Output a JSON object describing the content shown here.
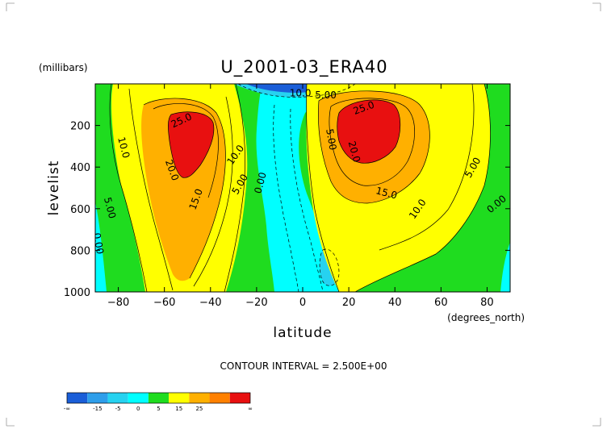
{
  "chart_data": {
    "type": "contour",
    "title": "U_2001-03_ERA40",
    "xlabel": "latitude",
    "xunits": "(degrees_north)",
    "ylabel": "levelist",
    "yunits": "(millibars)",
    "xlim": [
      -90,
      90
    ],
    "ylim": [
      1000,
      0
    ],
    "xticks": [
      -80,
      -60,
      -40,
      -20,
      0,
      20,
      40,
      60,
      80
    ],
    "xtick_labels": [
      "−80",
      "−60",
      "−40",
      "−20",
      "0",
      "20",
      "40",
      "60",
      "80"
    ],
    "yticks": [
      200,
      400,
      600,
      800,
      1000
    ],
    "ytick_labels": [
      "200",
      "400",
      "600",
      "800",
      "1000"
    ],
    "contour_interval_text": "CONTOUR INTERVAL = 2.500E+00",
    "contour_labels": [
      {
        "text": "25.0",
        "lat": -52,
        "lev": 190,
        "angle": -25
      },
      {
        "text": "20.0",
        "lat": -58,
        "lev": 420,
        "angle": 70
      },
      {
        "text": "15.0",
        "lat": -45,
        "lev": 560,
        "angle": -70
      },
      {
        "text": "10.0",
        "lat": -79,
        "lev": 310,
        "angle": 75
      },
      {
        "text": "10.0",
        "lat": -28,
        "lev": 350,
        "angle": -55
      },
      {
        "text": "5.00",
        "lat": -85,
        "lev": 600,
        "angle": 75
      },
      {
        "text": "5.00",
        "lat": -26,
        "lev": 490,
        "angle": -60
      },
      {
        "text": "0.00",
        "lat": -17,
        "lev": 480,
        "angle": -75
      },
      {
        "text": "0.00",
        "lat": -90,
        "lev": 770,
        "angle": 80
      },
      {
        "text": "10.0",
        "lat": -1,
        "lev": 60,
        "angle": 0
      },
      {
        "text": "5.00",
        "lat": 10,
        "lev": 70,
        "angle": 0
      },
      {
        "text": "5.00",
        "lat": 11,
        "lev": 270,
        "angle": 80
      },
      {
        "text": "25.0",
        "lat": 27,
        "lev": 130,
        "angle": -20
      },
      {
        "text": "20.0",
        "lat": 21,
        "lev": 330,
        "angle": 75
      },
      {
        "text": "15.0",
        "lat": 36,
        "lev": 540,
        "angle": 15
      },
      {
        "text": "10.0",
        "lat": 51,
        "lev": 610,
        "angle": -55
      },
      {
        "text": "5.00",
        "lat": 75,
        "lev": 410,
        "angle": -60
      },
      {
        "text": "0.00",
        "lat": 85,
        "lev": 590,
        "angle": -40
      }
    ],
    "colorbar": {
      "colors": [
        "#1a5ed8",
        "#2e9eea",
        "#26d2f0",
        "#00ffff",
        "#1fdc1f",
        "#ffff00",
        "#ffb000",
        "#ff8000",
        "#e81010"
      ],
      "labels": [
        "-∞",
        "-15",
        "-5",
        "0",
        "5",
        "15",
        "25",
        "∞"
      ]
    }
  }
}
